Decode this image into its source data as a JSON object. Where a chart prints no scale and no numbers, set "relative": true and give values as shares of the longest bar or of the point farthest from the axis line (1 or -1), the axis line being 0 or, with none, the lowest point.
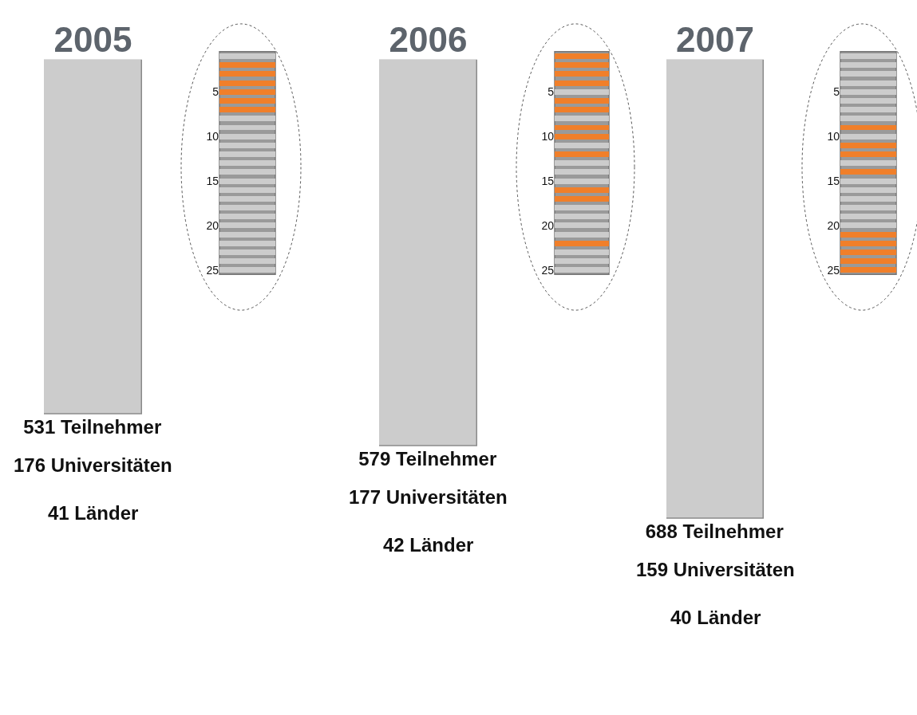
{
  "chart_data": [
    {
      "type": "bar",
      "categories": [
        "2005"
      ],
      "values": [
        531
      ],
      "color": "#cccccc",
      "value_labels": [
        "531 Teilnehmer"
      ],
      "annotations": [
        "176 Universitäten",
        "41 Länder"
      ],
      "tick_labels": "x"
    },
    {
      "type": "bar",
      "orientation": "horizontal",
      "relative": true,
      "categories": [
        null,
        null,
        null,
        null,
        "5",
        null,
        null,
        null,
        null,
        "10",
        null,
        null,
        null,
        null,
        "15",
        null,
        null,
        null,
        null,
        "20",
        null,
        null,
        null,
        null,
        "25"
      ],
      "values": [
        1,
        1,
        1,
        1,
        1,
        1,
        1,
        1,
        1,
        1,
        1,
        1,
        1,
        1,
        1,
        1,
        1,
        1,
        1,
        1,
        1,
        1,
        1,
        1,
        1
      ],
      "colors": [
        "#cccccc",
        "#f07f2a",
        "#f07f2a",
        "#f07f2a",
        "#f07f2a",
        "#f07f2a",
        "#f07f2a",
        "#cccccc",
        "#cccccc",
        "#cccccc",
        "#cccccc",
        "#cccccc",
        "#cccccc",
        "#cccccc",
        "#cccccc",
        "#cccccc",
        "#cccccc",
        "#cccccc",
        "#cccccc",
        "#cccccc",
        "#cccccc",
        "#cccccc",
        "#cccccc",
        "#cccccc",
        "#cccccc"
      ],
      "tick_labels": "y"
    },
    {
      "type": "bar",
      "categories": [
        "2006"
      ],
      "values": [
        579
      ],
      "color": "#cccccc",
      "value_labels": [
        "579 Teilnehmer"
      ],
      "annotations": [
        "177 Universitäten",
        "42 Länder"
      ],
      "tick_labels": "x"
    },
    {
      "type": "bar",
      "orientation": "horizontal",
      "relative": true,
      "categories": [
        null,
        null,
        null,
        null,
        "5",
        null,
        null,
        null,
        null,
        "10",
        null,
        null,
        null,
        null,
        "15",
        null,
        null,
        null,
        null,
        "20",
        null,
        null,
        null,
        null,
        "25"
      ],
      "values": [
        1,
        1,
        1,
        1,
        1,
        1,
        1,
        1,
        1,
        1,
        1,
        1,
        1,
        1,
        1,
        1,
        1,
        1,
        1,
        1,
        1,
        1,
        1,
        1,
        1
      ],
      "colors": [
        "#f07f2a",
        "#f07f2a",
        "#f07f2a",
        "#f07f2a",
        "#cccccc",
        "#f07f2a",
        "#f07f2a",
        "#cccccc",
        "#f07f2a",
        "#f07f2a",
        "#cccccc",
        "#f07f2a",
        "#cccccc",
        "#cccccc",
        "#cccccc",
        "#f07f2a",
        "#f07f2a",
        "#cccccc",
        "#cccccc",
        "#cccccc",
        "#cccccc",
        "#f07f2a",
        "#cccccc",
        "#cccccc",
        "#cccccc"
      ],
      "tick_labels": "y"
    },
    {
      "type": "bar",
      "categories": [
        "2007"
      ],
      "values": [
        688
      ],
      "color": "#cccccc",
      "value_labels": [
        "688 Teilnehmer"
      ],
      "annotations": [
        "159 Universitäten",
        "40 Länder"
      ],
      "tick_labels": "x"
    },
    {
      "type": "bar",
      "orientation": "horizontal",
      "relative": true,
      "categories": [
        null,
        null,
        null,
        null,
        "5",
        null,
        null,
        null,
        null,
        "10",
        null,
        null,
        null,
        null,
        "15",
        null,
        null,
        null,
        null,
        "20",
        null,
        null,
        null,
        null,
        "25"
      ],
      "values": [
        1,
        1,
        1,
        1,
        1,
        1,
        1,
        1,
        1,
        1,
        1,
        1,
        1,
        1,
        1,
        1,
        1,
        1,
        1,
        1,
        1,
        1,
        1,
        1,
        1
      ],
      "colors": [
        "#cccccc",
        "#cccccc",
        "#cccccc",
        "#cccccc",
        "#cccccc",
        "#cccccc",
        "#cccccc",
        "#cccccc",
        "#f07f2a",
        "#cccccc",
        "#f07f2a",
        "#f07f2a",
        "#cccccc",
        "#f07f2a",
        "#cccccc",
        "#cccccc",
        "#cccccc",
        "#cccccc",
        "#cccccc",
        "#cccccc",
        "#f07f2a",
        "#f07f2a",
        "#f07f2a",
        "#f07f2a",
        "#f07f2a"
      ],
      "tick_labels": "y"
    }
  ]
}
